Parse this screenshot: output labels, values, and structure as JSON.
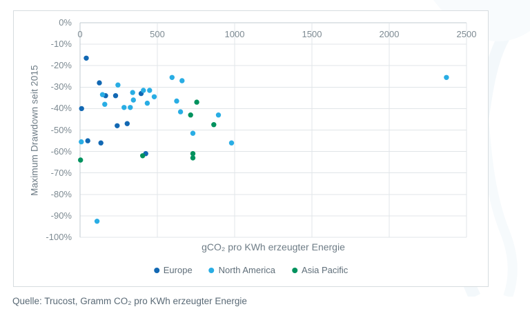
{
  "source": "Quelle: Trucost, Gramm CO₂ pro KWh erzeugter Energie",
  "colors": {
    "europe": "#1268b3",
    "north_america": "#29ade4",
    "asia_pacific": "#00925e",
    "gridline": "#e0e5e8",
    "axis_line": "#c2cbd1",
    "frame_border": "#d6dcdf",
    "tick_text": "#7d8a92",
    "title_text": "#6e7c86",
    "watermark": "#f3f8fb"
  },
  "chart_data": {
    "type": "scatter",
    "title": "",
    "xlabel": "gCO₂ pro KWh erzeugter Energie",
    "ylabel": "Maximum Drawdown seit 2015",
    "xlim": [
      0,
      2500
    ],
    "ylim": [
      -100,
      0
    ],
    "x_ticks": [
      "0",
      "500",
      "1000",
      "1500",
      "2000",
      "2500"
    ],
    "x_tick_values": [
      0,
      500,
      1000,
      1500,
      2000,
      2500
    ],
    "y_ticks": [
      "0%",
      "-10%",
      "-20%",
      "-30%",
      "-40%",
      "-50%",
      "-60%",
      "-70%",
      "-80%",
      "-90%",
      "-100%"
    ],
    "y_tick_values": [
      0,
      -10,
      -20,
      -30,
      -40,
      -50,
      -60,
      -70,
      -80,
      -90,
      -100
    ],
    "grid": true,
    "legend_position": "bottom",
    "marker_radius": 3.7,
    "series": [
      {
        "name": "Europe",
        "color": "#1268b3",
        "points": [
          [
            40,
            -16.5
          ],
          [
            10,
            -40
          ],
          [
            125,
            -28
          ],
          [
            50,
            -55
          ],
          [
            135,
            -56
          ],
          [
            165,
            -34
          ],
          [
            230,
            -34
          ],
          [
            395,
            -33
          ],
          [
            240,
            -48
          ],
          [
            305,
            -47
          ],
          [
            425,
            -61
          ]
        ]
      },
      {
        "name": "North America",
        "color": "#29ade4",
        "points": [
          [
            245,
            -29
          ],
          [
            145,
            -33.5
          ],
          [
            160,
            -38
          ],
          [
            285,
            -39.5
          ],
          [
            325,
            -39.5
          ],
          [
            340,
            -32.5
          ],
          [
            345,
            -36
          ],
          [
            410,
            -31.5
          ],
          [
            450,
            -31.5
          ],
          [
            435,
            -37.5
          ],
          [
            480,
            -34.5
          ],
          [
            595,
            -25.5
          ],
          [
            625,
            -36.5
          ],
          [
            650,
            -41.5
          ],
          [
            660,
            -27
          ],
          [
            730,
            -51.5
          ],
          [
            895,
            -43
          ],
          [
            980,
            -56
          ],
          [
            8,
            -55.5
          ],
          [
            110,
            -92.5
          ],
          [
            2370,
            -25.5
          ]
        ]
      },
      {
        "name": "Asia Pacific",
        "color": "#00925e",
        "points": [
          [
            755,
            -37
          ],
          [
            715,
            -43
          ],
          [
            865,
            -47.5
          ],
          [
            3,
            -64
          ],
          [
            405,
            -62
          ],
          [
            730,
            -61
          ],
          [
            730,
            -63
          ]
        ]
      }
    ]
  }
}
